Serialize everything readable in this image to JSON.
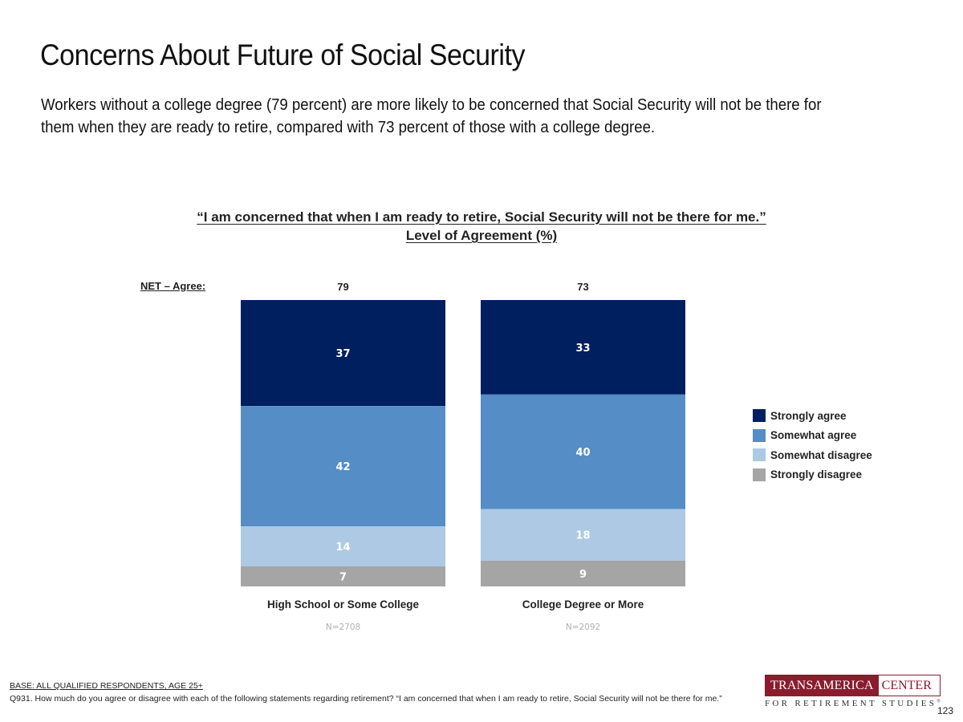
{
  "page": {
    "title": "Concerns About Future of Social Security",
    "subtitle": "Workers without a college degree (79 percent) are more likely to be concerned that Social Security will not be there for them when they are ready to retire, compared with 73 percent of those with a college degree.",
    "page_number": "123"
  },
  "chart_data": {
    "type": "bar",
    "stacked": true,
    "title": "“I am concerned that when I am ready to retire, Social Security will not be there for me.”",
    "subtitle": "Level of Agreement (%)",
    "net_label": "NET – Agree:",
    "categories": [
      "High School or Some College",
      "College Degree or More"
    ],
    "sample_sizes": [
      "N=2708",
      "N=2092"
    ],
    "net_values": [
      79,
      73
    ],
    "series": [
      {
        "name": "Strongly agree",
        "values": [
          37,
          33
        ],
        "color": "#001f5f"
      },
      {
        "name": "Somewhat agree",
        "values": [
          42,
          40
        ],
        "color": "#558dc6"
      },
      {
        "name": "Somewhat disagree",
        "values": [
          14,
          18
        ],
        "color": "#adc9e4"
      },
      {
        "name": "Strongly disagree",
        "values": [
          7,
          9
        ],
        "color": "#a5a5a5"
      }
    ],
    "legend_position": "right",
    "grid": false,
    "xlabel": "",
    "ylabel": ""
  },
  "footer": {
    "base": "BASE: ALL QUALIFIED RESPONDENTS, AGE 25+",
    "question": "Q931. How much do you agree or disagree with each of the following statements regarding retirement? “I am concerned that when I am ready to retire, Social Security will not be there for me.”"
  },
  "logo": {
    "left": "TRANSAMERICA",
    "right": "CENTER",
    "bottom": "FOR RETIREMENT STUDIES",
    "mark": "®"
  }
}
